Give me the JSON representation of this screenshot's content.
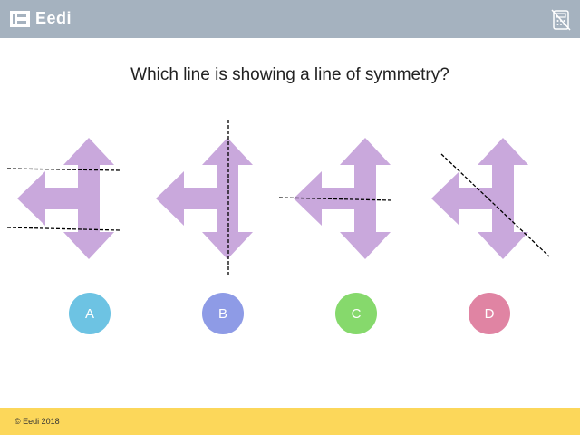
{
  "header": {
    "brand": "Eedi",
    "calculator_icon": "calculator-disabled-icon",
    "background": "#a5b2bf"
  },
  "question": {
    "text": "Which line is showing a line of symmetry?"
  },
  "shapes": {
    "arrow_color": "#c9a8dc",
    "line_color": "#000000",
    "items": [
      {
        "label": "A"
      },
      {
        "label": "B"
      },
      {
        "label": "C"
      },
      {
        "label": "D"
      }
    ]
  },
  "options": [
    {
      "label": "A",
      "color": "#6dc3e3"
    },
    {
      "label": "B",
      "color": "#8e9be6"
    },
    {
      "label": "C",
      "color": "#86d96c"
    },
    {
      "label": "D",
      "color": "#e084a3"
    }
  ],
  "footer": {
    "copyright": "© Eedi 2018",
    "background": "#fcd75a"
  }
}
